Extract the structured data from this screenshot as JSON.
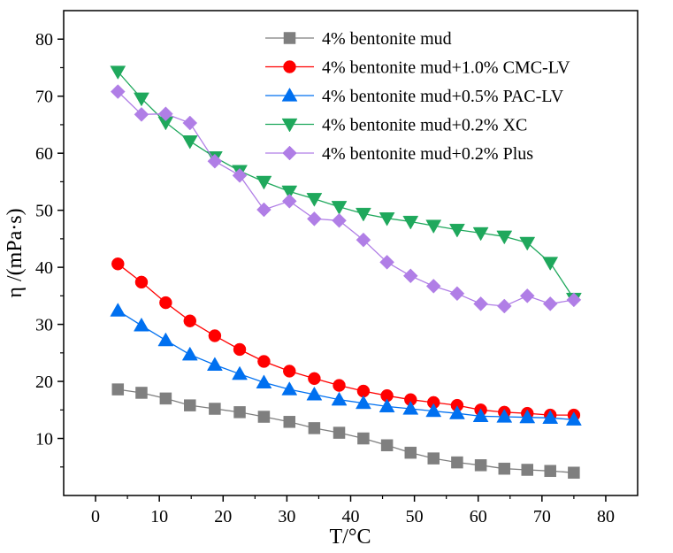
{
  "chart_data": {
    "type": "line",
    "title": "",
    "xlabel": "T/°C",
    "ylabel": "η /(mPa·s)",
    "xlim": [
      -5,
      85
    ],
    "ylim": [
      0,
      85
    ],
    "xticks": [
      0,
      10,
      20,
      30,
      40,
      50,
      60,
      70,
      80
    ],
    "yticks": [
      10,
      20,
      30,
      40,
      50,
      60,
      70,
      80
    ],
    "grid": false,
    "legend_position": "top-right",
    "x": [
      3.5,
      7.2,
      11.0,
      14.8,
      18.7,
      22.6,
      26.4,
      30.4,
      34.3,
      38.2,
      42.0,
      45.7,
      49.4,
      53.0,
      56.7,
      60.4,
      64.1,
      67.7,
      71.3,
      75.0
    ],
    "series": [
      {
        "name": "4% bentonite mud",
        "marker": "square",
        "color": "#7f7f7f",
        "values": [
          18.6,
          18.0,
          17.0,
          15.8,
          15.2,
          14.6,
          13.8,
          12.9,
          11.8,
          11.0,
          10.0,
          8.8,
          7.5,
          6.5,
          5.8,
          5.3,
          4.7,
          4.5,
          4.3,
          4.0
        ]
      },
      {
        "name": "4% bentonite mud+1.0% CMC-LV",
        "marker": "circle",
        "color": "#ff0000",
        "values": [
          40.6,
          37.4,
          33.8,
          30.6,
          28.0,
          25.6,
          23.5,
          21.8,
          20.5,
          19.3,
          18.3,
          17.5,
          16.8,
          16.3,
          15.8,
          15.0,
          14.6,
          14.4,
          14.1,
          14.1
        ]
      },
      {
        "name": "4% bentonite mud+0.5% PAC-LV",
        "marker": "triangle-up",
        "color": "#0070f0",
        "values": [
          32.4,
          29.8,
          27.2,
          24.7,
          22.9,
          21.3,
          19.8,
          18.6,
          17.7,
          16.8,
          16.2,
          15.6,
          15.2,
          14.8,
          14.4,
          13.9,
          13.8,
          13.7,
          13.6,
          13.3
        ]
      },
      {
        "name": "4% bentonite mud+0.2% XC",
        "marker": "triangle-down",
        "color": "#1fa85c",
        "values": [
          74.3,
          69.6,
          65.4,
          62.1,
          59.3,
          56.9,
          55.0,
          53.3,
          52.0,
          50.6,
          49.4,
          48.6,
          48.0,
          47.3,
          46.6,
          46.0,
          45.4,
          44.3,
          40.8,
          34.5
        ]
      },
      {
        "name": "4% bentonite mud+0.2% Plus",
        "marker": "diamond",
        "color": "#b07ee6",
        "values": [
          70.8,
          66.8,
          66.9,
          65.3,
          58.6,
          56.1,
          50.1,
          51.6,
          48.5,
          48.2,
          44.8,
          40.9,
          38.5,
          36.7,
          35.4,
          33.6,
          33.2,
          35.0,
          33.6,
          34.3
        ]
      }
    ]
  }
}
